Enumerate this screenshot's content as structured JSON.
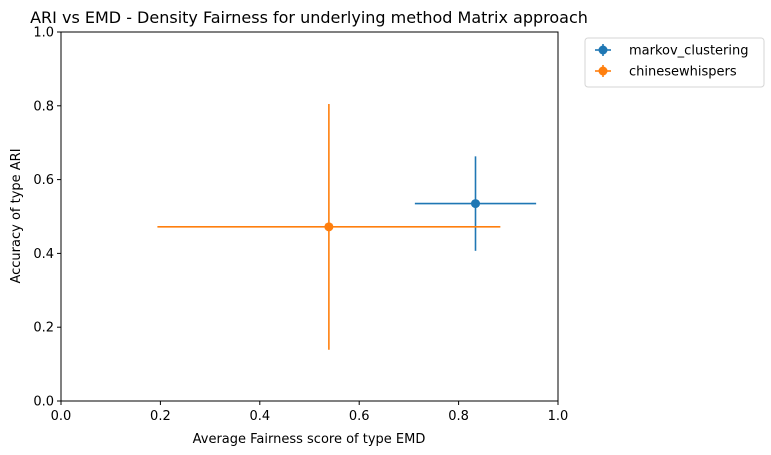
{
  "chart_data": {
    "type": "scatter",
    "title": "ARI vs EMD - Density Fairness for underlying method Matrix approach",
    "xlabel": "Average Fairness score of type EMD",
    "ylabel": "Accuracy of type ARI",
    "xlim": [
      0.0,
      1.0
    ],
    "ylim": [
      0.0,
      1.0
    ],
    "xticks": [
      "0.0",
      "0.2",
      "0.4",
      "0.6",
      "0.8",
      "1.0"
    ],
    "yticks": [
      "0.0",
      "0.2",
      "0.4",
      "0.6",
      "0.8",
      "1.0"
    ],
    "grid": false,
    "legend_position": "outside-top-right",
    "series": [
      {
        "name": "markov_clustering",
        "color": "#1f77b4",
        "x": 0.834,
        "y": 0.535,
        "xerr": [
          0.122,
          0.122
        ],
        "yerr": [
          0.128,
          0.128
        ]
      },
      {
        "name": "chinesewhispers",
        "color": "#ff7f0e",
        "x": 0.539,
        "y": 0.472,
        "xerr": [
          0.345,
          0.345
        ],
        "yerr": [
          0.333,
          0.333
        ]
      }
    ]
  }
}
